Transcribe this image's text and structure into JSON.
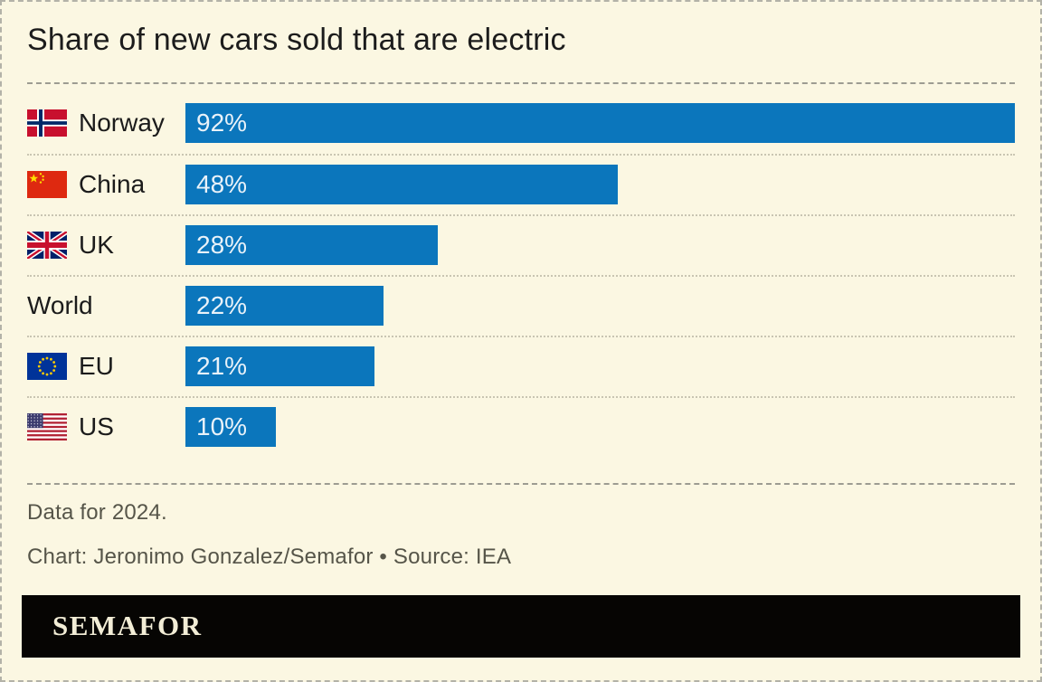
{
  "title": "Share of new cars sold that are electric",
  "chart_data": {
    "type": "bar",
    "orientation": "horizontal",
    "title": "Share of new cars sold that are electric",
    "categories": [
      "Norway",
      "China",
      "UK",
      "World",
      "EU",
      "US"
    ],
    "values": [
      92,
      48,
      28,
      22,
      21,
      10
    ],
    "value_labels": [
      "92%",
      "48%",
      "28%",
      "22%",
      "21%",
      "10%"
    ],
    "flags": [
      "norway",
      "china",
      "uk",
      null,
      "eu",
      "us"
    ],
    "unit": "%",
    "xlim": [
      0,
      92
    ],
    "bar_color": "#0b76bc",
    "grid": "dotted row separators",
    "legend": "none"
  },
  "notes": {
    "data_note": "Data for 2024.",
    "credit": "Chart: Jeronimo Gonzalez/Semafor • Source: IEA"
  },
  "branding": {
    "wordmark": "SEMAFOR"
  },
  "colors": {
    "background": "#fbf7e2",
    "bar": "#0b76bc",
    "title_text": "#1c1c1c",
    "muted_text": "#565549",
    "banner_bg": "#060503",
    "banner_text": "#f2edd6"
  }
}
